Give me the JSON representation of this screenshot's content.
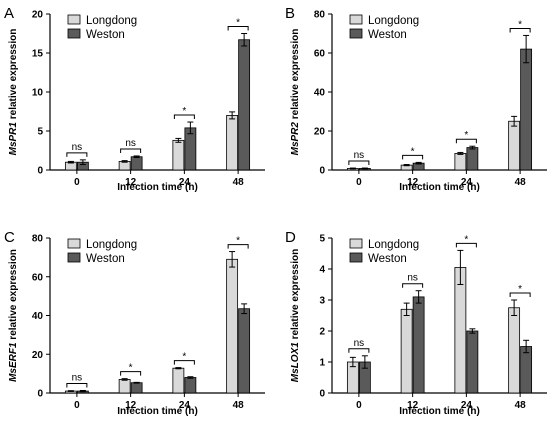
{
  "colors": {
    "Longdong": "#d9d9d9",
    "Weston": "#5a5a5a",
    "axis": "#000000"
  },
  "chart_data": [
    {
      "panel": "A",
      "type": "bar",
      "ylabel_gene": "MsPR1",
      "ylabel_rest": " relative expression",
      "xlabel": "Infection time (h)",
      "categories": [
        "0",
        "12",
        "24",
        "48"
      ],
      "ylim": [
        0,
        20
      ],
      "yticks": [
        0,
        5,
        10,
        15,
        20
      ],
      "series": [
        {
          "name": "Longdong",
          "values": [
            1.0,
            1.1,
            3.8,
            7.0
          ],
          "errors": [
            0.1,
            0.1,
            0.25,
            0.45
          ]
        },
        {
          "name": "Weston",
          "values": [
            1.0,
            1.7,
            5.4,
            16.7
          ],
          "errors": [
            0.3,
            0.1,
            0.75,
            0.8
          ]
        }
      ],
      "significance": [
        "ns",
        "ns",
        "*",
        "*"
      ],
      "legend": "top-left"
    },
    {
      "panel": "B",
      "type": "bar",
      "ylabel_gene": "MsPR2",
      "ylabel_rest": " relative expression",
      "xlabel": "Infection time (h)",
      "categories": [
        "0",
        "12",
        "24",
        "48"
      ],
      "ylim": [
        0,
        80
      ],
      "yticks": [
        0,
        20,
        40,
        60,
        80
      ],
      "series": [
        {
          "name": "Longdong",
          "values": [
            0.8,
            2.5,
            8.5,
            25.0
          ],
          "errors": [
            0.2,
            0.3,
            0.5,
            2.5
          ]
        },
        {
          "name": "Weston",
          "values": [
            0.8,
            3.5,
            11.5,
            62.0
          ],
          "errors": [
            0.2,
            0.4,
            0.7,
            7.0
          ]
        }
      ],
      "significance": [
        "ns",
        "*",
        "*",
        "*"
      ],
      "legend": "top-left"
    },
    {
      "panel": "C",
      "type": "bar",
      "ylabel_gene": "MsERF1",
      "ylabel_rest": " relative expression",
      "xlabel": "Infection time (h)",
      "categories": [
        "0",
        "12",
        "24",
        "48"
      ],
      "ylim": [
        0,
        80
      ],
      "yticks": [
        0,
        20,
        40,
        60,
        80
      ],
      "series": [
        {
          "name": "Longdong",
          "values": [
            1.0,
            7.0,
            12.8,
            69.0
          ],
          "errors": [
            0.2,
            0.4,
            0.3,
            4.0
          ]
        },
        {
          "name": "Weston",
          "values": [
            1.0,
            5.3,
            8.0,
            43.5
          ],
          "errors": [
            0.3,
            0.2,
            0.4,
            2.5
          ]
        }
      ],
      "significance": [
        "ns",
        "*",
        "*",
        "*"
      ],
      "legend": "top-left"
    },
    {
      "panel": "D",
      "type": "bar",
      "ylabel_gene": "MsLOX1",
      "ylabel_rest": " relative expression",
      "xlabel": "Infection time (h)",
      "categories": [
        "0",
        "12",
        "24",
        "48"
      ],
      "ylim": [
        0,
        5
      ],
      "yticks": [
        0,
        1,
        2,
        3,
        4,
        5
      ],
      "series": [
        {
          "name": "Longdong",
          "values": [
            1.0,
            2.7,
            4.05,
            2.75
          ],
          "errors": [
            0.15,
            0.2,
            0.55,
            0.25
          ]
        },
        {
          "name": "Weston",
          "values": [
            1.0,
            3.1,
            2.0,
            1.5
          ],
          "errors": [
            0.2,
            0.2,
            0.07,
            0.2
          ]
        }
      ],
      "significance": [
        "ns",
        "ns",
        "*",
        "*"
      ],
      "legend": "top-left"
    }
  ]
}
